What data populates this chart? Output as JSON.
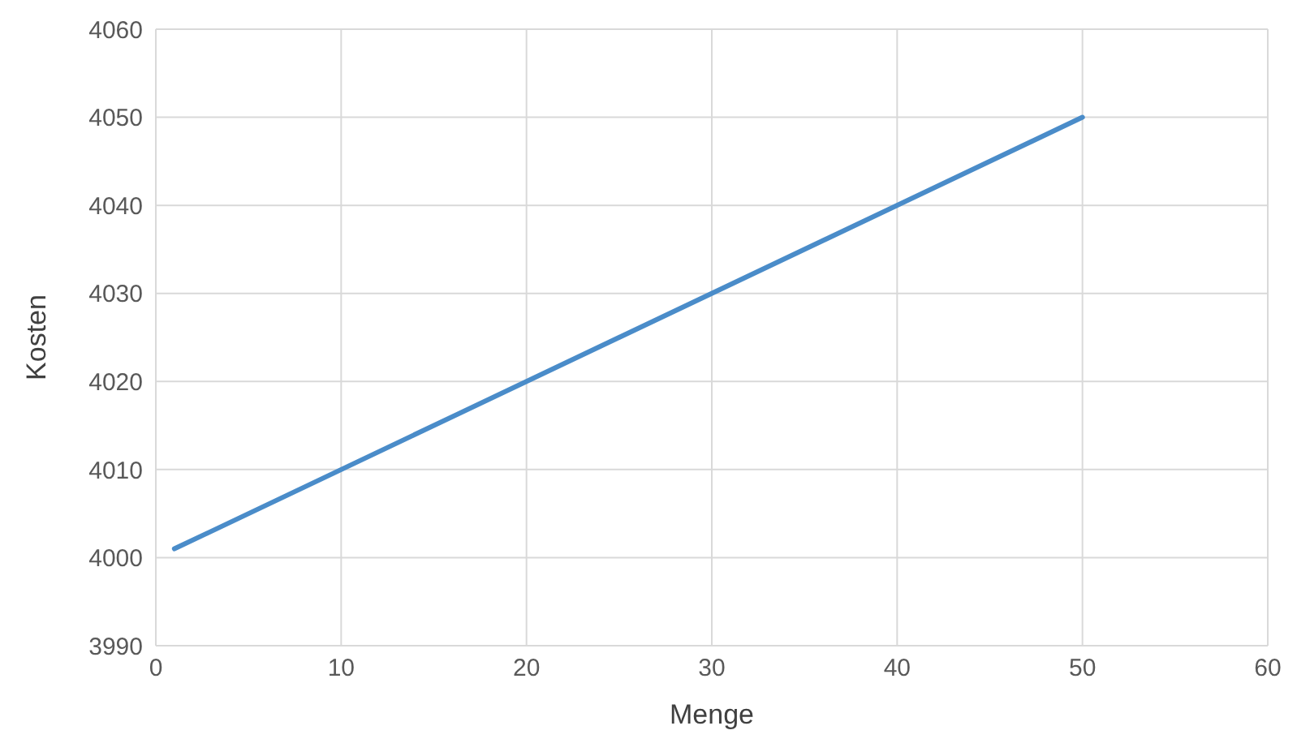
{
  "chart_data": {
    "type": "line",
    "xlabel": "Menge",
    "ylabel": "Kosten",
    "series": [
      {
        "color": "#4a8cc9",
        "x": [
          1,
          50
        ],
        "values": [
          4001,
          4050
        ]
      }
    ],
    "xlim": [
      0,
      60
    ],
    "xticks": [
      0,
      10,
      20,
      30,
      40,
      50,
      60
    ],
    "ylim": [
      3990,
      4060
    ],
    "yticks": [
      3990,
      4000,
      4010,
      4020,
      4030,
      4040,
      4050,
      4060
    ],
    "grid": true,
    "marker": "none",
    "line_style": "solid"
  }
}
